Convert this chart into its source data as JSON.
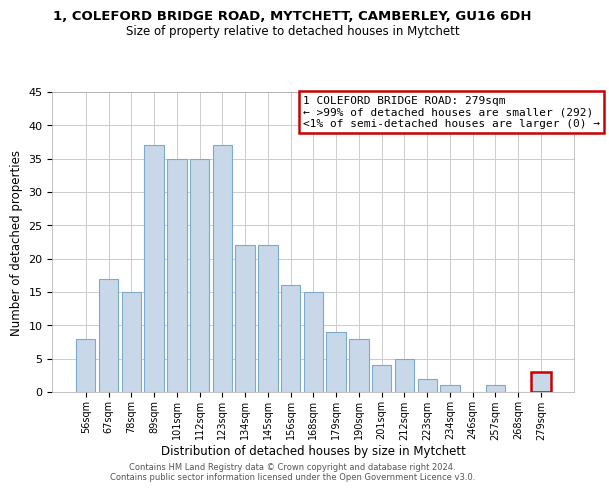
{
  "title_line1": "1, COLEFORD BRIDGE ROAD, MYTCHETT, CAMBERLEY, GU16 6DH",
  "title_line2": "Size of property relative to detached houses in Mytchett",
  "xlabel": "Distribution of detached houses by size in Mytchett",
  "ylabel": "Number of detached properties",
  "bar_labels": [
    "56sqm",
    "67sqm",
    "78sqm",
    "89sqm",
    "101sqm",
    "112sqm",
    "123sqm",
    "134sqm",
    "145sqm",
    "156sqm",
    "168sqm",
    "179sqm",
    "190sqm",
    "201sqm",
    "212sqm",
    "223sqm",
    "234sqm",
    "246sqm",
    "257sqm",
    "268sqm",
    "279sqm"
  ],
  "bar_values": [
    8,
    17,
    15,
    37,
    35,
    35,
    37,
    22,
    22,
    16,
    15,
    9,
    8,
    4,
    5,
    2,
    1,
    0,
    1,
    0,
    3
  ],
  "bar_color": "#c8d8e8",
  "bar_edgecolor": "#7aabcc",
  "highlight_index": 20,
  "highlight_bar_edgecolor": "#cc0000",
  "box_text_line1": "1 COLEFORD BRIDGE ROAD: 279sqm",
  "box_text_line2": "← >99% of detached houses are smaller (292)",
  "box_text_line3": "<1% of semi-detached houses are larger (0) →",
  "box_edgecolor": "#cc0000",
  "box_facecolor": "#ffffff",
  "ylim": [
    0,
    45
  ],
  "yticks": [
    0,
    5,
    10,
    15,
    20,
    25,
    30,
    35,
    40,
    45
  ],
  "footer_line1": "Contains HM Land Registry data © Crown copyright and database right 2024.",
  "footer_line2": "Contains public sector information licensed under the Open Government Licence v3.0.",
  "bg_color": "#ffffff",
  "grid_color": "#cccccc"
}
